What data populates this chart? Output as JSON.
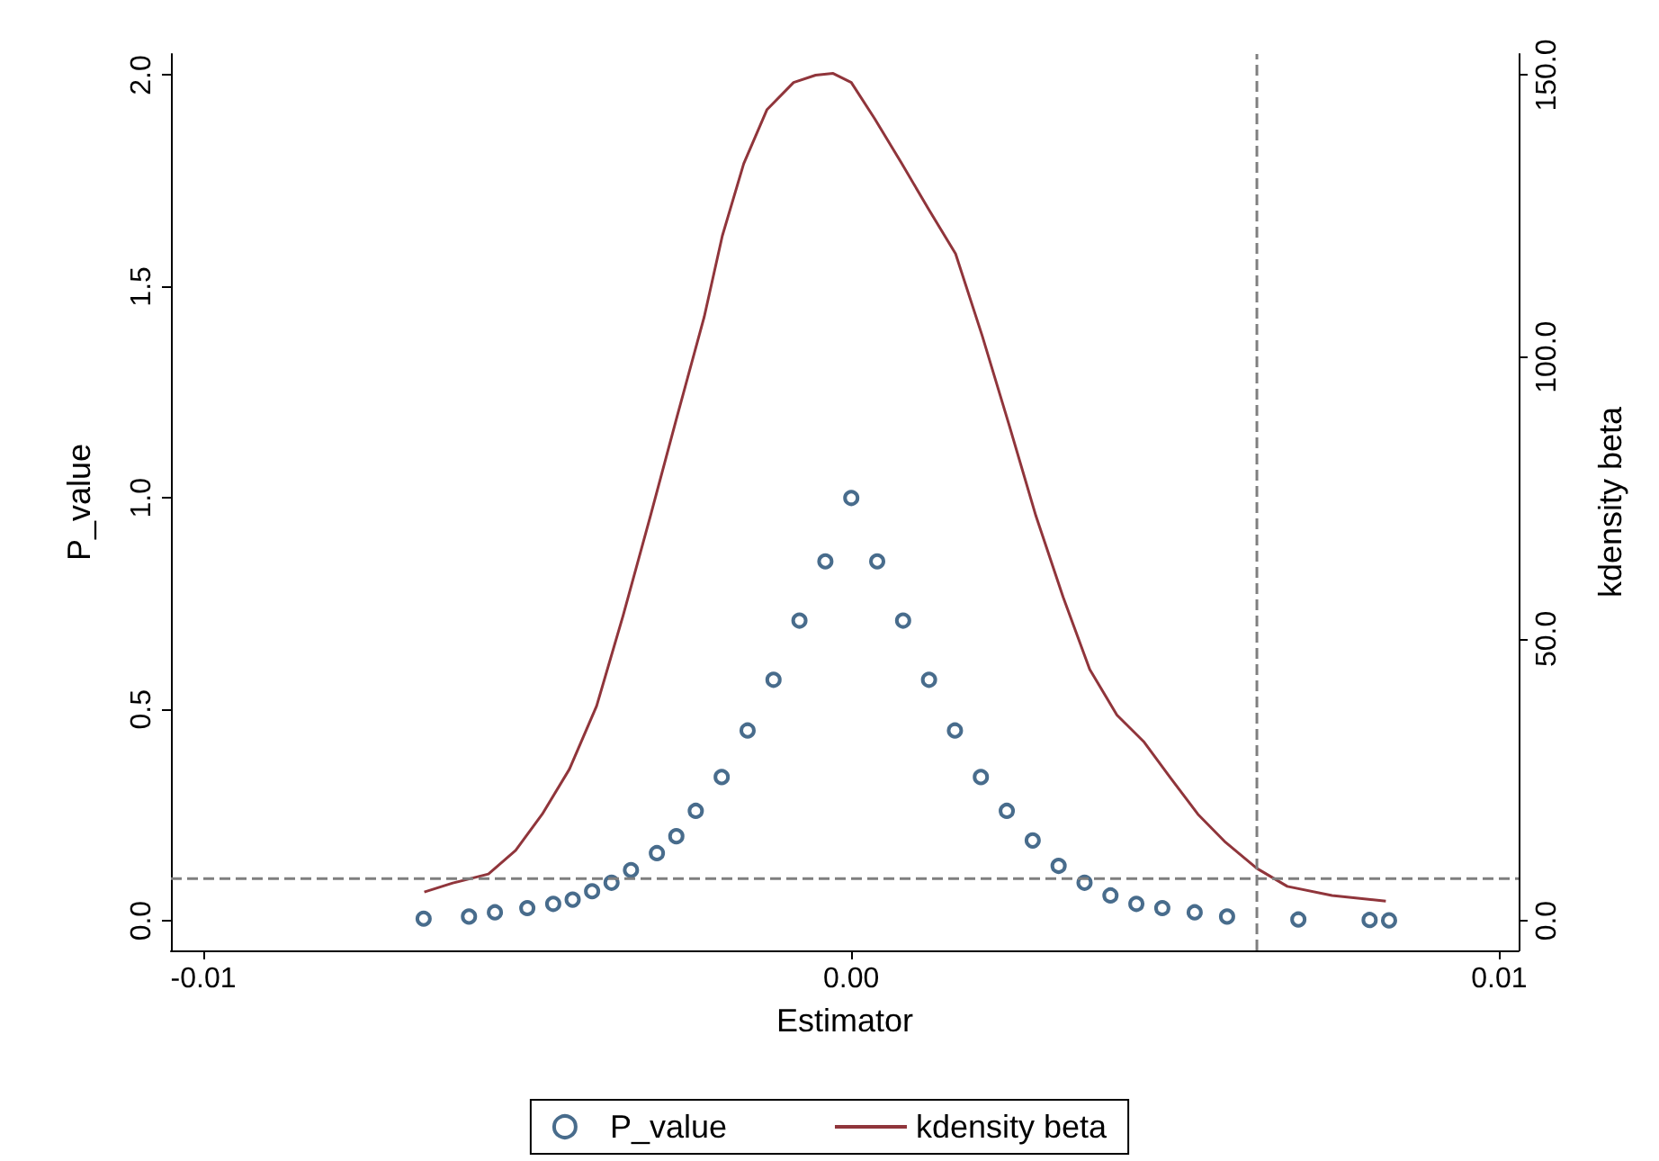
{
  "chart_data": {
    "type": "scatter",
    "xlabel": "Estimator",
    "ylabel": "P_value",
    "y2label": "kdensity beta",
    "xlim": [
      -0.0105,
      0.0103
    ],
    "xticks": [
      {
        "value": -0.01,
        "label": "-0.01"
      },
      {
        "value": 0,
        "label": "0.00"
      },
      {
        "value": 0.01,
        "label": "0.01"
      }
    ],
    "ylim": [
      -0.07,
      2.05
    ],
    "yticks": [
      {
        "value": 0,
        "label": "0.0"
      },
      {
        "value": 0.5,
        "label": "0.5"
      },
      {
        "value": 1,
        "label": "1.0"
      },
      {
        "value": 1.5,
        "label": "1.5"
      },
      {
        "value": 2,
        "label": "2.0"
      }
    ],
    "y2lim": [
      -5.25,
      153.75
    ],
    "y2ticks": [
      {
        "value": 0,
        "label": "0.0"
      },
      {
        "value": 50,
        "label": "50.0"
      },
      {
        "value": 100,
        "label": "100.0"
      },
      {
        "value": 150,
        "label": "150.0"
      }
    ],
    "grid": false,
    "legend": "bottom",
    "ref_lines": [
      {
        "axis": "y",
        "value": 0.1,
        "color": "#7f7f7f",
        "line_style": "dashed"
      },
      {
        "axis": "x",
        "value": 0.00626,
        "color": "#7f7f7f",
        "line_style": "dashed"
      }
    ],
    "series": [
      {
        "name": "P_value",
        "marker": "circle",
        "color": "#1a476f",
        "x": [
          -0.0066,
          -0.0059,
          -0.0055,
          -0.005,
          -0.0046,
          -0.0043,
          -0.004,
          -0.0037,
          -0.0034,
          -0.003,
          -0.0027,
          -0.0024,
          -0.002,
          -0.0016,
          -0.0012,
          -0.0008,
          -0.0004,
          0,
          0.0004,
          0.0008,
          0.0012,
          0.0016,
          0.002,
          0.0024,
          0.0028,
          0.0032,
          0.0036,
          0.004,
          0.0044,
          0.0048,
          0.0053,
          0.0058,
          0.0069,
          0.008,
          0.0083
        ],
        "values": [
          0.005,
          0.01,
          0.02,
          0.03,
          0.04,
          0.05,
          0.07,
          0.09,
          0.12,
          0.16,
          0.2,
          0.26,
          0.34,
          0.45,
          0.57,
          0.71,
          0.85,
          1.0,
          0.85,
          0.71,
          0.57,
          0.45,
          0.34,
          0.26,
          0.19,
          0.13,
          0.09,
          0.06,
          0.04,
          0.03,
          0.02,
          0.01,
          0.003,
          0.002,
          0.001
        ]
      },
      {
        "name": "kdensity beta",
        "type": "line",
        "axis": "y2",
        "marker": "none",
        "line_style": "solid",
        "color": "#90353b",
        "x": [
          -0.00659,
          -0.00615,
          -0.0056,
          -0.00518,
          -0.00477,
          -0.00435,
          -0.00393,
          -0.00352,
          -0.0031,
          -0.00269,
          -0.00227,
          -0.00199,
          -0.00166,
          -0.0013,
          -0.00089,
          -0.00055,
          -0.00028,
          0,
          0.00036,
          0.00078,
          0.00119,
          0.00161,
          0.00202,
          0.00244,
          0.00285,
          0.00327,
          0.00368,
          0.0041,
          0.00452,
          0.00493,
          0.00535,
          0.00576,
          0.00626,
          0.00673,
          0.00742,
          0.00825
        ],
        "values": [
          5.1,
          6.7,
          8.3,
          12.5,
          18.9,
          26.9,
          38.1,
          54.2,
          71.8,
          89.4,
          107.1,
          121.5,
          134.3,
          143.9,
          148.7,
          150.0,
          150.3,
          148.7,
          142.3,
          134.3,
          126.3,
          118.3,
          103.8,
          87.8,
          71.8,
          57.4,
          44.6,
          36.5,
          31.7,
          25.3,
          18.9,
          14.1,
          9.3,
          6.1,
          4.5,
          3.5
        ]
      }
    ]
  }
}
